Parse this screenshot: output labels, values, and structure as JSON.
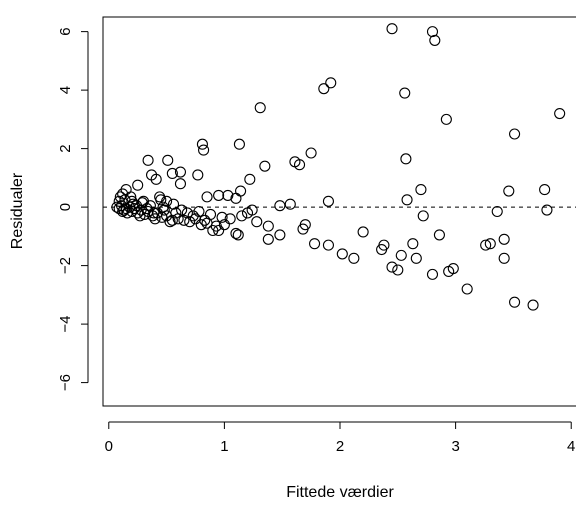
{
  "chart_data": {
    "type": "scatter",
    "title": "",
    "xlabel": "Fittede værdier",
    "ylabel": "Residualer",
    "xlim": [
      -0.05,
      4.05
    ],
    "ylim": [
      -6.8,
      6.5
    ],
    "x_ticks": [
      0,
      1,
      2,
      3,
      4
    ],
    "y_ticks": [
      -6,
      -4,
      -2,
      0,
      2,
      4,
      6
    ],
    "x_tick_labels": [
      "0",
      "1",
      "2",
      "3",
      "4"
    ],
    "y_tick_labels": [
      "−6",
      "−4",
      "−2",
      "0",
      "2",
      "4",
      "6"
    ],
    "reference_line": {
      "y": 0,
      "style": "dashed"
    },
    "grid": false,
    "legend": "none",
    "marker": "open-circle",
    "colors": {
      "marker": "#000000",
      "axis": "#000000",
      "background": "#ffffff"
    },
    "points": [
      [
        2.45,
        6.1
      ],
      [
        2.8,
        6.0
      ],
      [
        2.82,
        5.7
      ],
      [
        1.92,
        4.25
      ],
      [
        1.86,
        4.05
      ],
      [
        2.56,
        3.9
      ],
      [
        1.31,
        3.4
      ],
      [
        3.9,
        3.2
      ],
      [
        2.92,
        3.0
      ],
      [
        3.51,
        2.5
      ],
      [
        0.81,
        2.15
      ],
      [
        1.13,
        2.15
      ],
      [
        0.82,
        1.95
      ],
      [
        1.75,
        1.85
      ],
      [
        2.57,
        1.65
      ],
      [
        0.34,
        1.6
      ],
      [
        0.51,
        1.6
      ],
      [
        1.61,
        1.55
      ],
      [
        1.65,
        1.45
      ],
      [
        1.35,
        1.4
      ],
      [
        0.55,
        1.15
      ],
      [
        0.62,
        1.2
      ],
      [
        0.37,
        1.1
      ],
      [
        0.41,
        0.95
      ],
      [
        0.77,
        1.1
      ],
      [
        1.22,
        0.95
      ],
      [
        0.62,
        0.8
      ],
      [
        0.25,
        0.75
      ],
      [
        2.7,
        0.6
      ],
      [
        3.46,
        0.55
      ],
      [
        3.77,
        0.6
      ],
      [
        1.14,
        0.55
      ],
      [
        0.15,
        0.6
      ],
      [
        0.12,
        0.45
      ],
      [
        0.1,
        0.35
      ],
      [
        0.85,
        0.35
      ],
      [
        0.95,
        0.4
      ],
      [
        1.03,
        0.4
      ],
      [
        0.2,
        0.2
      ],
      [
        0.3,
        0.2
      ],
      [
        0.45,
        0.25
      ],
      [
        0.5,
        0.2
      ],
      [
        1.1,
        0.3
      ],
      [
        0.07,
        0.0
      ],
      [
        0.09,
        -0.05
      ],
      [
        0.11,
        0.05
      ],
      [
        0.13,
        -0.1
      ],
      [
        0.15,
        -0.05
      ],
      [
        0.18,
        0.0
      ],
      [
        0.2,
        -0.15
      ],
      [
        0.22,
        -0.05
      ],
      [
        0.25,
        -0.2
      ],
      [
        0.28,
        -0.1
      ],
      [
        0.31,
        -0.25
      ],
      [
        0.34,
        -0.15
      ],
      [
        0.38,
        -0.3
      ],
      [
        0.42,
        -0.2
      ],
      [
        0.46,
        -0.35
      ],
      [
        0.5,
        -0.3
      ],
      [
        0.55,
        -0.45
      ],
      [
        0.6,
        -0.4
      ],
      [
        0.65,
        -0.45
      ],
      [
        0.7,
        -0.5
      ],
      [
        0.75,
        -0.4
      ],
      [
        0.8,
        -0.6
      ],
      [
        0.85,
        -0.55
      ],
      [
        0.9,
        -0.8
      ],
      [
        0.95,
        -0.8
      ],
      [
        1.0,
        -0.6
      ],
      [
        1.05,
        -0.4
      ],
      [
        1.1,
        -0.9
      ],
      [
        1.15,
        -0.3
      ],
      [
        1.2,
        -0.2
      ],
      [
        1.28,
        -0.5
      ],
      [
        1.38,
        -0.65
      ],
      [
        1.48,
        0.05
      ],
      [
        1.57,
        0.1
      ],
      [
        1.68,
        -0.75
      ],
      [
        1.78,
        -1.25
      ],
      [
        1.9,
        0.2
      ],
      [
        2.02,
        -1.6
      ],
      [
        2.12,
        -1.75
      ],
      [
        2.2,
        -0.85
      ],
      [
        2.36,
        -1.45
      ],
      [
        2.38,
        -1.3
      ],
      [
        2.45,
        -2.05
      ],
      [
        2.5,
        -2.15
      ],
      [
        2.53,
        -1.65
      ],
      [
        2.58,
        0.25
      ],
      [
        2.63,
        -1.25
      ],
      [
        2.66,
        -1.75
      ],
      [
        2.72,
        -0.3
      ],
      [
        2.8,
        -2.3
      ],
      [
        2.86,
        -0.95
      ],
      [
        2.94,
        -2.2
      ],
      [
        2.98,
        -2.1
      ],
      [
        3.1,
        -2.8
      ],
      [
        3.26,
        -1.3
      ],
      [
        3.3,
        -1.25
      ],
      [
        3.36,
        -0.15
      ],
      [
        3.42,
        -1.1
      ],
      [
        3.42,
        -1.75
      ],
      [
        3.51,
        -3.25
      ],
      [
        3.67,
        -3.35
      ],
      [
        3.79,
        -0.1
      ],
      [
        1.48,
        -0.95
      ],
      [
        1.38,
        -1.1
      ],
      [
        1.7,
        -0.6
      ],
      [
        1.9,
        -1.3
      ],
      [
        0.09,
        0.2
      ],
      [
        0.16,
        -0.2
      ],
      [
        0.24,
        0.05
      ],
      [
        0.33,
        -0.05
      ],
      [
        0.48,
        -0.1
      ],
      [
        0.58,
        -0.2
      ],
      [
        0.68,
        -0.2
      ],
      [
        0.78,
        -0.15
      ],
      [
        0.88,
        -0.25
      ],
      [
        0.98,
        -0.35
      ],
      [
        1.24,
        -0.1
      ],
      [
        0.44,
        0.35
      ],
      [
        0.56,
        0.1
      ],
      [
        0.14,
        0.25
      ],
      [
        0.21,
        0.1
      ],
      [
        0.27,
        -0.3
      ],
      [
        0.36,
        0.05
      ],
      [
        0.4,
        -0.4
      ],
      [
        0.53,
        -0.5
      ],
      [
        0.63,
        -0.1
      ],
      [
        0.73,
        -0.3
      ],
      [
        0.83,
        -0.45
      ],
      [
        0.93,
        -0.65
      ],
      [
        0.12,
        -0.15
      ],
      [
        0.19,
        0.35
      ],
      [
        0.29,
        0.15
      ],
      [
        0.39,
        -0.2
      ],
      [
        0.47,
        0.0
      ],
      [
        1.12,
        -0.95
      ]
    ]
  }
}
